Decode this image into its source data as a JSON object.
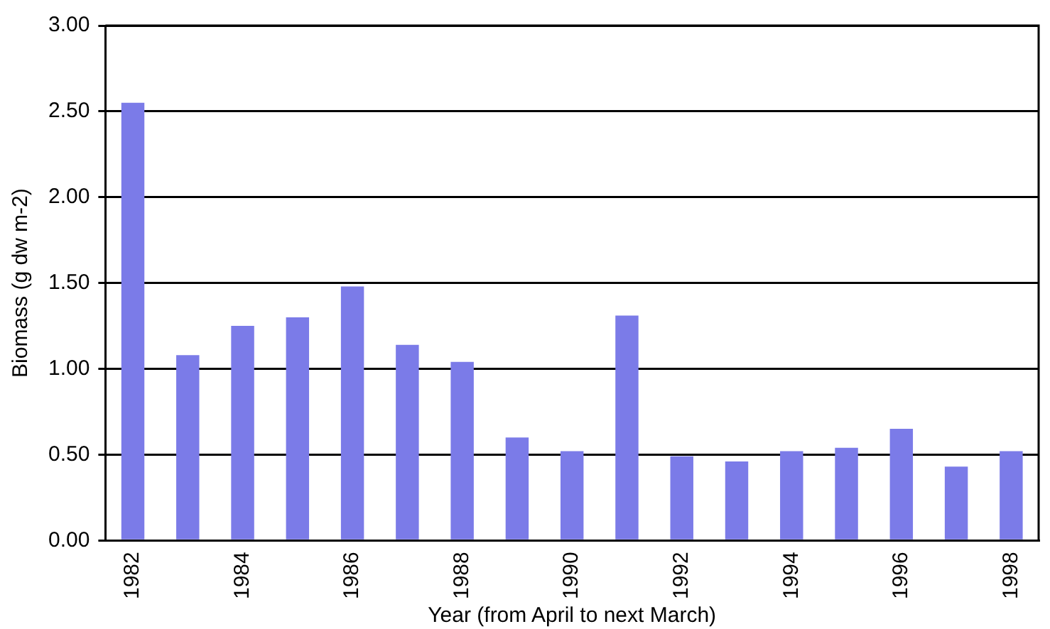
{
  "chart_data": {
    "type": "bar",
    "xlabel": "Year (from April to next March)",
    "ylabel": "Biomass (g dw m-2)",
    "categories": [
      "1982",
      null,
      "1984",
      null,
      "1986",
      null,
      "1988",
      null,
      "1990",
      null,
      "1992",
      null,
      "1994",
      null,
      "1996",
      null,
      "1998"
    ],
    "values": [
      2.55,
      1.08,
      1.25,
      1.3,
      1.48,
      1.14,
      1.04,
      0.6,
      0.52,
      1.31,
      0.49,
      0.46,
      0.52,
      0.54,
      0.65,
      0.43,
      0.52
    ],
    "color": "#7b7be8",
    "ylim": [
      0,
      3
    ],
    "yticks": [
      {
        "value": 0,
        "label": "0.00"
      },
      {
        "value": 0.5,
        "label": "0.50"
      },
      {
        "value": 1,
        "label": "1.00"
      },
      {
        "value": 1.5,
        "label": "1.50"
      },
      {
        "value": 2,
        "label": "2.00"
      },
      {
        "value": 2.5,
        "label": "2.50"
      },
      {
        "value": 3,
        "label": "3.00"
      }
    ],
    "grid": "y",
    "legend": false
  }
}
